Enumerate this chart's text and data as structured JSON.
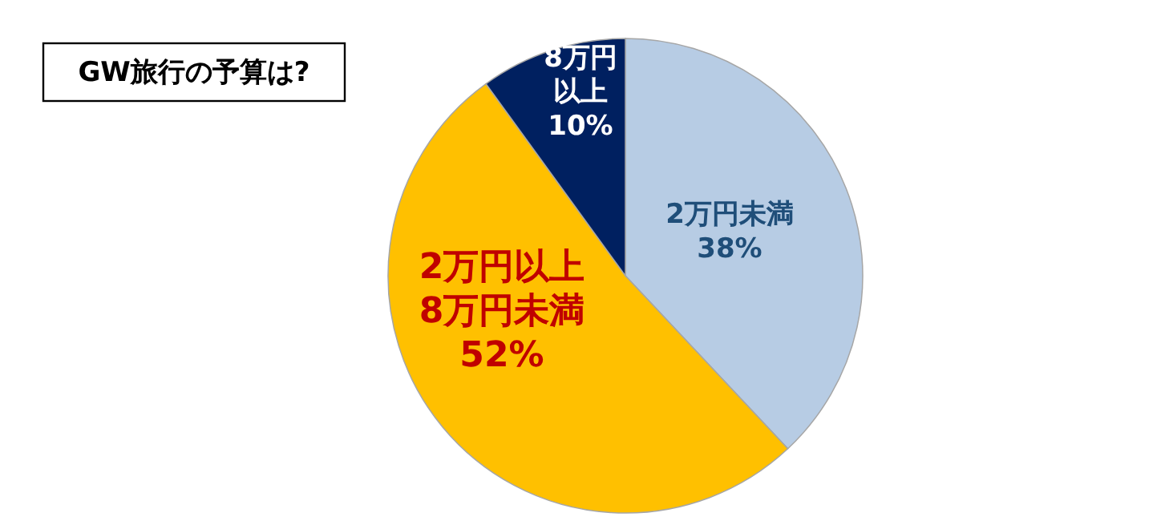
{
  "chart_data": {
    "type": "pie",
    "title": "GW旅行の予算は?",
    "categories": [
      "2万円未満",
      "2万円以上8万円未満",
      "8万円以上"
    ],
    "values": [
      38,
      52,
      10
    ],
    "value_labels": [
      "38%",
      "52%",
      "10%"
    ],
    "colors": [
      "#b7cce4",
      "#ffc000",
      "#002060"
    ]
  }
}
